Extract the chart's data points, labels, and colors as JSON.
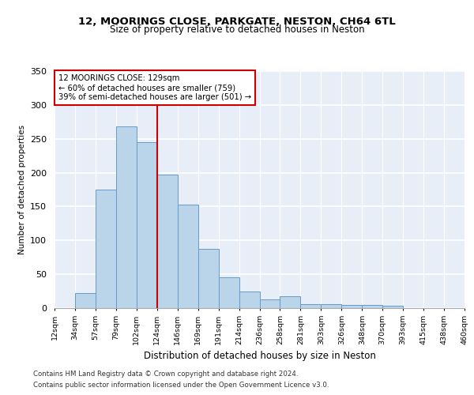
{
  "title1": "12, MOORINGS CLOSE, PARKGATE, NESTON, CH64 6TL",
  "title2": "Size of property relative to detached houses in Neston",
  "xlabel": "Distribution of detached houses by size in Neston",
  "ylabel": "Number of detached properties",
  "footer1": "Contains HM Land Registry data © Crown copyright and database right 2024.",
  "footer2": "Contains public sector information licensed under the Open Government Licence v3.0.",
  "annotation_line1": "12 MOORINGS CLOSE: 129sqm",
  "annotation_line2": "← 60% of detached houses are smaller (759)",
  "annotation_line3": "39% of semi-detached houses are larger (501) →",
  "heights": [
    0,
    22,
    175,
    268,
    245,
    197,
    153,
    88,
    46,
    24,
    13,
    18,
    6,
    6,
    5,
    5,
    3,
    0,
    0,
    0
  ],
  "bar_color": "#bad4ea",
  "bar_edge_color": "#6699cc",
  "red_line_x": 5,
  "bg_color": "#e8eef8",
  "grid_color": "#ffffff",
  "annotation_box_color": "#ffffff",
  "annotation_box_edge": "#cc0000",
  "red_line_color": "#cc0000",
  "ylim": [
    0,
    350
  ],
  "yticks": [
    0,
    50,
    100,
    150,
    200,
    250,
    300,
    350
  ],
  "bin_labels": [
    "12sqm",
    "34sqm",
    "57sqm",
    "79sqm",
    "102sqm",
    "124sqm",
    "146sqm",
    "169sqm",
    "191sqm",
    "214sqm",
    "236sqm",
    "258sqm",
    "281sqm",
    "303sqm",
    "326sqm",
    "348sqm",
    "370sqm",
    "393sqm",
    "415sqm",
    "438sqm",
    "460sqm"
  ]
}
